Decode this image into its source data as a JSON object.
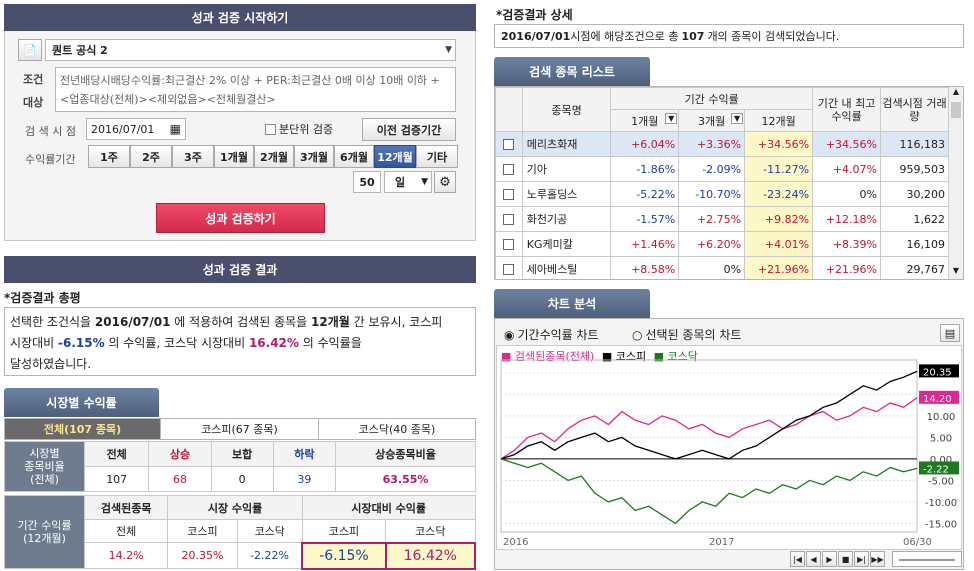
{
  "left": {
    "start_title": "성과 검증 시작하기",
    "formula_select": "퀀트 공식 2",
    "condition_label": "조건",
    "target_label": "대상",
    "condition_text": "전년배당시배당수익률:최근결산 2% 이상 + PER:최근결산 0배 이상 10배 이하 +",
    "target_text": "<업종대상(전체)><제외없음><전체월결산>",
    "check_date_label": "검 색 시 점",
    "check_date_value": "2016/07/01",
    "quarter_check_label": "분단위 검증",
    "prev_period_button": "이전 검증기간",
    "return_period_label": "수익률기간",
    "period_buttons": [
      "1주",
      "2주",
      "3주",
      "1개월",
      "2개월",
      "3개월",
      "6개월",
      "12개월",
      "기타"
    ],
    "selected_period": "12개월",
    "custom_num": "50",
    "custom_unit": "일",
    "run_button": "성과 검증하기",
    "result_title": "성과 검증 결과",
    "summary_heading": "*검증결과 총평",
    "summary": {
      "p1": "선택한 조건식을 ",
      "date": "2016/07/01",
      "p2": " 에 적용하여 검색된 종목을 ",
      "period": "12개월",
      "p3": " 간 보유시, 코스피",
      "p4": "시장대비 ",
      "kospi_excess": "-6.15%",
      "p5": " 의 수익률, 코스닥 시장대비 ",
      "kosdaq_excess": "16.42%",
      "p6": " 의 수익률을",
      "p7": "달성하였습니다."
    },
    "market_tab": "시장별 수익률",
    "subtabs": [
      "전체(107 종목)",
      "코스피(67 종목)",
      "코스닥(40 종목)"
    ],
    "ratio_label": [
      "시장별",
      "종목비율",
      "(전체)"
    ],
    "ratio_headers": [
      "전체",
      "상승",
      "보합",
      "하락",
      "상승종목비율"
    ],
    "ratio_values": [
      "107",
      "68",
      "0",
      "39",
      "63.55%"
    ],
    "period_label": [
      "기간 수익률",
      "(12개월)"
    ],
    "ret_group_headers": [
      "검색된종목",
      "시장 수익률",
      "시장대비 수익률"
    ],
    "ret_sub_headers": [
      "전체",
      "코스피",
      "코스닥",
      "코스피",
      "코스닥"
    ],
    "ret_values": [
      "14.2%",
      "20.35%",
      "-2.22%",
      "-6.15%",
      "16.42%"
    ]
  },
  "right": {
    "detail_heading": "*검증결과 상세",
    "detail": {
      "date": "2016/07/01",
      "t1": " 시점에 해당조건으로 총 ",
      "count": "107",
      "t2": " 개의 종목이 검색되었습니다."
    },
    "list_tab": "검색 종목 리스트",
    "col_name": "종목명",
    "col_period": "기간 수익률",
    "col_1m": "1개월",
    "col_3m": "3개월",
    "col_12m": "12개월",
    "col_max": "기간 내 최고수익률",
    "col_vol": "검색시점 거래량",
    "rows": [
      {
        "name": "메리츠화재",
        "m1": "+6.04%",
        "m3": "+3.36%",
        "m12": "+34.56%",
        "max": "+34.56%",
        "vol": "116,183"
      },
      {
        "name": "기아",
        "m1": "-1.86%",
        "m3": "-2.09%",
        "m12": "-11.27%",
        "max": "+4.07%",
        "vol": "959,503"
      },
      {
        "name": "노루홀딩스",
        "m1": "-5.22%",
        "m3": "-10.70%",
        "m12": "-23.24%",
        "max": "0%",
        "vol": "30,200"
      },
      {
        "name": "화천기공",
        "m1": "-1.57%",
        "m3": "+2.75%",
        "m12": "+9.82%",
        "max": "+12.18%",
        "vol": "1,622"
      },
      {
        "name": "KG케미칼",
        "m1": "+1.46%",
        "m3": "+6.20%",
        "m12": "+4.01%",
        "max": "+8.39%",
        "vol": "16,109"
      },
      {
        "name": "세아베스틸",
        "m1": "+8.58%",
        "m3": "0%",
        "m12": "+21.96%",
        "max": "+21.96%",
        "vol": "29,767"
      }
    ],
    "chart_tab": "차트 분석",
    "radio1": "기간수익률 차트",
    "radio2": "선택된 종목의 차트",
    "legend": [
      "검색된종목(전체)",
      "코스피",
      "코스닥"
    ],
    "colors": {
      "searched": "#e0268f",
      "kospi": "#000000",
      "kosdaq": "#1e7a1e"
    }
  },
  "chart_data": {
    "type": "line",
    "x_labels": [
      "2016",
      "2017",
      "06/30"
    ],
    "yticks": [
      "20.00",
      "15.00",
      "10.00",
      "5.00",
      "0.00",
      "-5.00",
      "-10.00",
      "-15.00"
    ],
    "ylim": [
      -17,
      23
    ],
    "end_labels": {
      "searched": "14.20",
      "kospi": "20.35",
      "kosdaq": "-2.22"
    },
    "series": [
      {
        "name": "검색된종목(전체)",
        "values": [
          0,
          2,
          5,
          6,
          4,
          7,
          9,
          10,
          8,
          11,
          9,
          8,
          10,
          9,
          7,
          8,
          6,
          5,
          7,
          8,
          9,
          7,
          8,
          10,
          11,
          9,
          10,
          12,
          11,
          13,
          12,
          14.2
        ]
      },
      {
        "name": "코스피",
        "values": [
          0,
          1,
          3,
          4,
          2,
          4,
          5,
          6,
          4,
          5,
          3,
          2,
          1,
          0,
          1,
          2,
          1,
          0,
          2,
          3,
          5,
          7,
          9,
          10,
          12,
          13,
          15,
          17,
          16,
          18,
          19,
          20.35
        ]
      },
      {
        "name": "코스닥",
        "values": [
          0,
          -1,
          -2,
          -1,
          -3,
          -5,
          -4,
          -8,
          -10,
          -9,
          -12,
          -11,
          -13,
          -15,
          -12,
          -10,
          -11,
          -8,
          -9,
          -7,
          -8,
          -6,
          -7,
          -5,
          -6,
          -4,
          -5,
          -3,
          -4,
          -2,
          -3,
          -2.22
        ]
      }
    ]
  }
}
